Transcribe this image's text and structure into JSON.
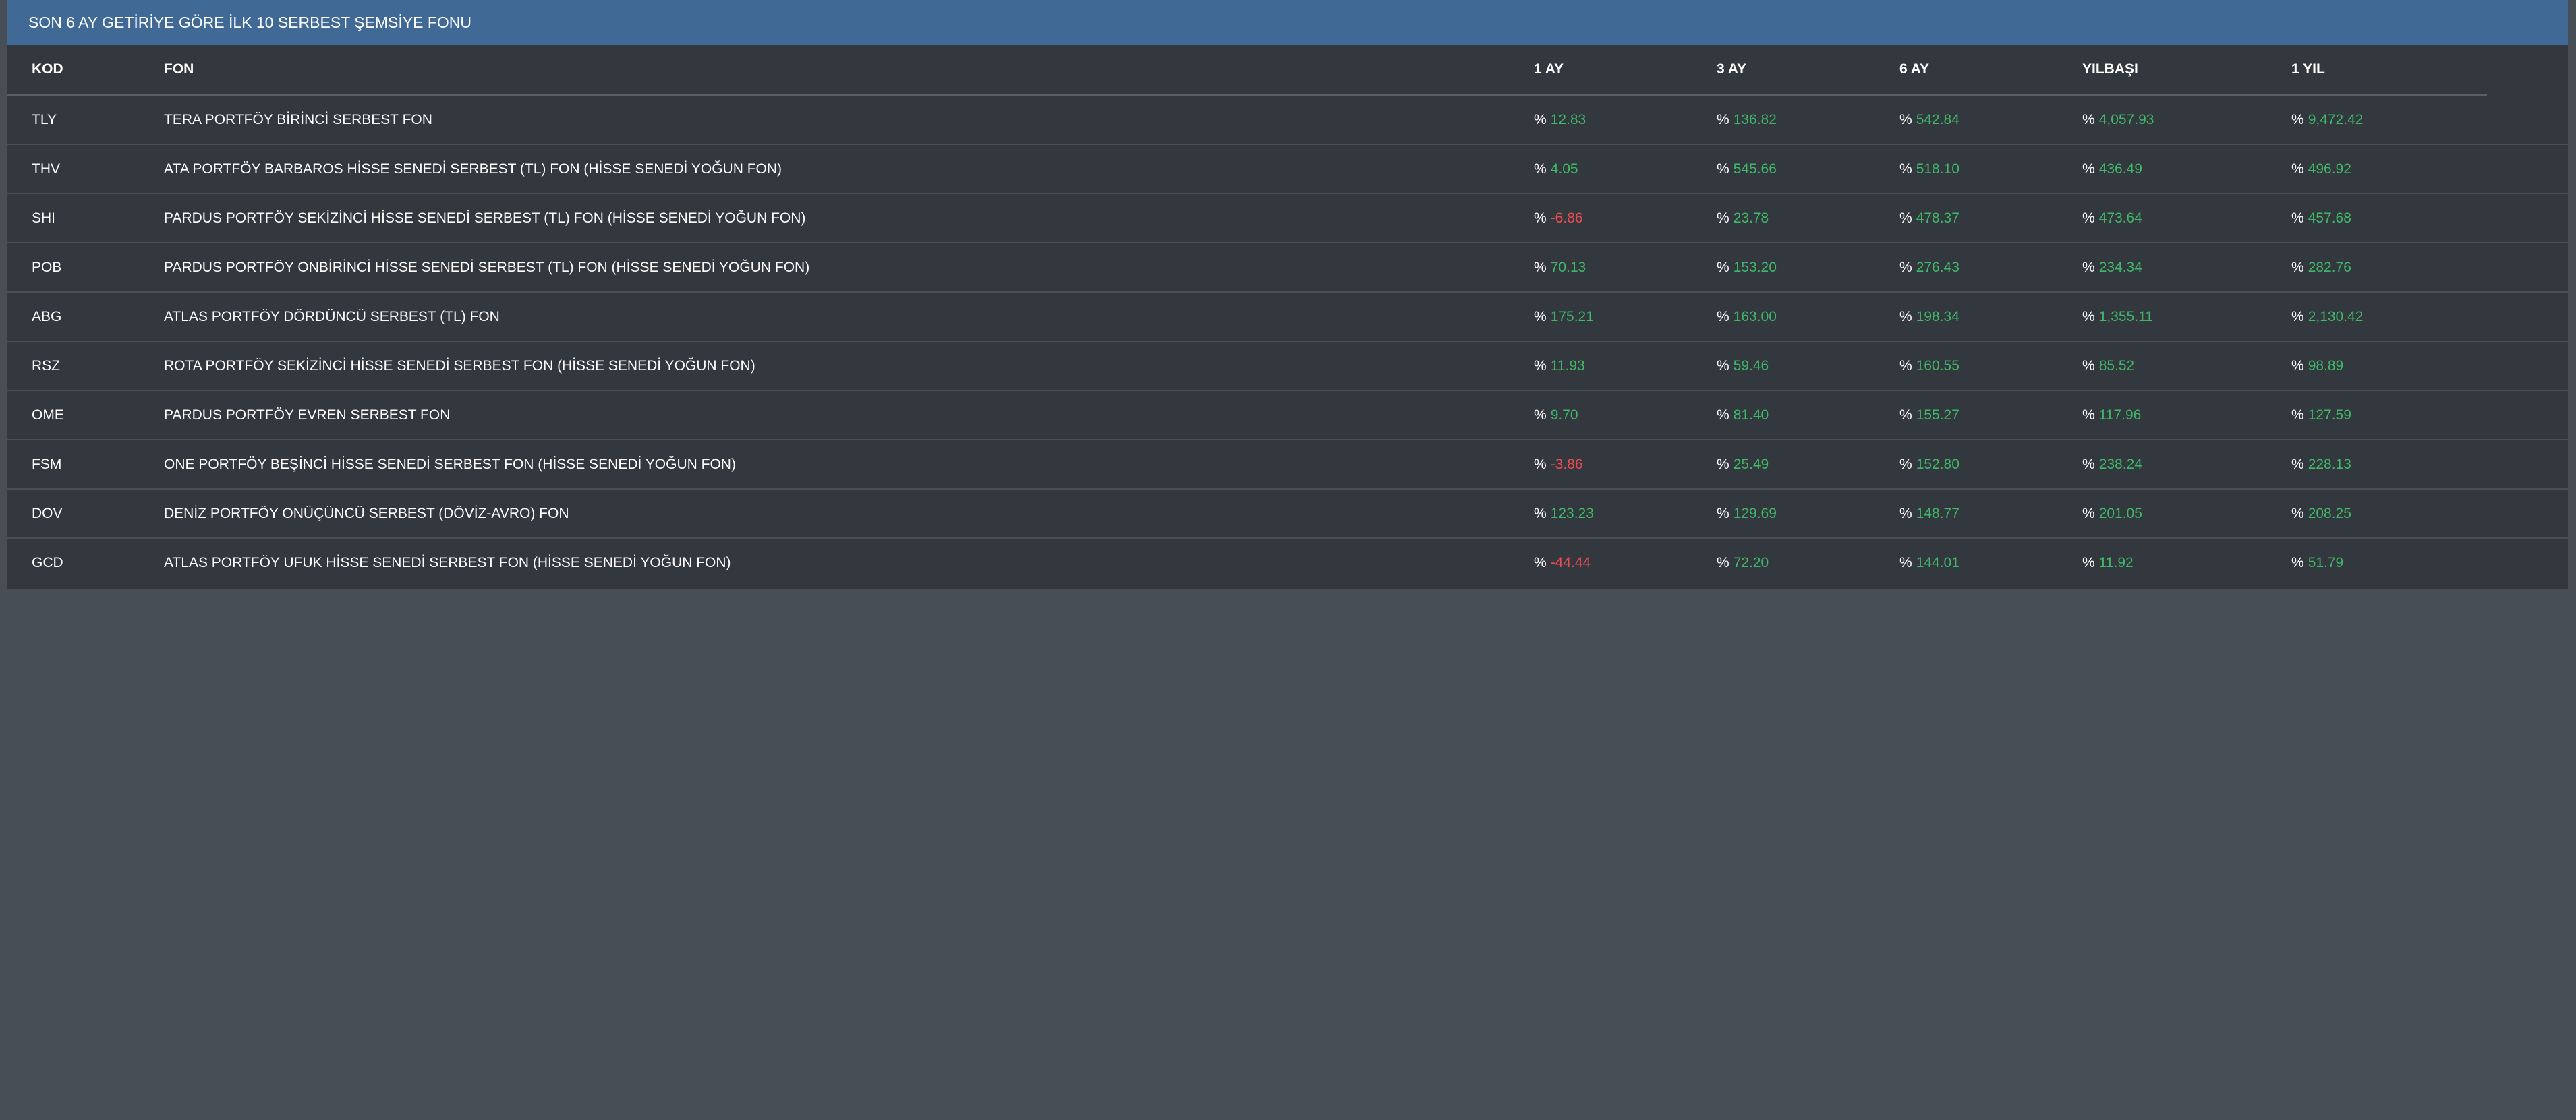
{
  "panel": {
    "title": "SON 6 AY GETİRİYE GÖRE İLK 10 SERBEST ŞEMSİYE FONU"
  },
  "colors": {
    "header_bg": "#416996",
    "panel_bg": "#33373e",
    "page_bg": "#474e56",
    "positive": "#3fb868",
    "negative": "#ee4b50"
  },
  "table": {
    "columns": [
      "KOD",
      "FON",
      "1 AY",
      "3 AY",
      "6 AY",
      "YILBAŞI",
      "1 YIL"
    ],
    "percent_symbol": "%",
    "rows": [
      {
        "kod": "TLY",
        "fon": "TERA PORTFÖY BİRİNCİ SERBEST FON",
        "values": [
          "12.83",
          "136.82",
          "542.84",
          "4,057.93",
          "9,472.42"
        ]
      },
      {
        "kod": "THV",
        "fon": "ATA PORTFÖY BARBAROS HİSSE SENEDİ SERBEST (TL) FON (HİSSE SENEDİ YOĞUN FON)",
        "values": [
          "4.05",
          "545.66",
          "518.10",
          "436.49",
          "496.92"
        ]
      },
      {
        "kod": "SHI",
        "fon": "PARDUS PORTFÖY SEKİZİNCİ HİSSE SENEDİ SERBEST (TL) FON (HİSSE SENEDİ YOĞUN FON)",
        "values": [
          "-6.86",
          "23.78",
          "478.37",
          "473.64",
          "457.68"
        ]
      },
      {
        "kod": "POB",
        "fon": "PARDUS PORTFÖY ONBİRİNCİ HİSSE SENEDİ SERBEST (TL) FON (HİSSE SENEDİ YOĞUN FON)",
        "values": [
          "70.13",
          "153.20",
          "276.43",
          "234.34",
          "282.76"
        ]
      },
      {
        "kod": "ABG",
        "fon": "ATLAS PORTFÖY DÖRDÜNCÜ SERBEST (TL) FON",
        "values": [
          "175.21",
          "163.00",
          "198.34",
          "1,355.11",
          "2,130.42"
        ]
      },
      {
        "kod": "RSZ",
        "fon": "ROTA PORTFÖY SEKİZİNCİ HİSSE SENEDİ SERBEST FON (HİSSE SENEDİ YOĞUN FON)",
        "values": [
          "11.93",
          "59.46",
          "160.55",
          "85.52",
          "98.89"
        ]
      },
      {
        "kod": "OME",
        "fon": "PARDUS PORTFÖY EVREN SERBEST FON",
        "values": [
          "9.70",
          "81.40",
          "155.27",
          "117.96",
          "127.59"
        ]
      },
      {
        "kod": "FSM",
        "fon": "ONE PORTFÖY BEŞİNCİ HİSSE SENEDİ SERBEST FON (HİSSE SENEDİ YOĞUN FON)",
        "values": [
          "-3.86",
          "25.49",
          "152.80",
          "238.24",
          "228.13"
        ]
      },
      {
        "kod": "DOV",
        "fon": "DENİZ PORTFÖY ONÜÇÜNCÜ SERBEST (DÖVİZ-AVRO) FON",
        "values": [
          "123.23",
          "129.69",
          "148.77",
          "201.05",
          "208.25"
        ]
      },
      {
        "kod": "GCD",
        "fon": "ATLAS PORTFÖY UFUK HİSSE SENEDİ SERBEST FON (HİSSE SENEDİ YOĞUN FON)",
        "values": [
          "-44.44",
          "72.20",
          "144.01",
          "11.92",
          "51.79"
        ]
      }
    ]
  }
}
